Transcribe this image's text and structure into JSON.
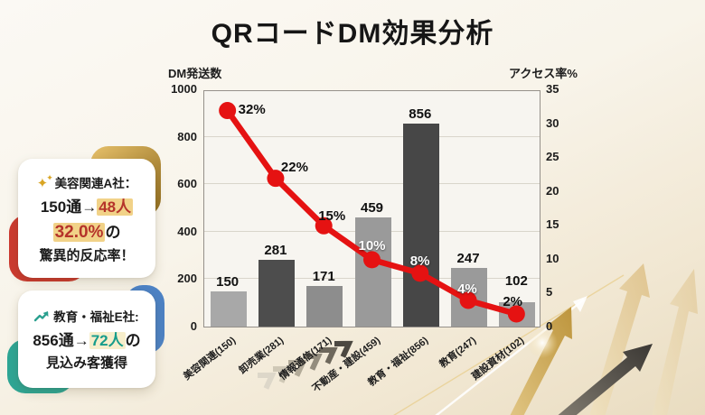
{
  "title": "QRコードDM効果分析",
  "chart_data": {
    "type": "bar",
    "subtype": "dual-axis bar + line",
    "categories": [
      "美容関連(150)",
      "卸売業(281)",
      "情報通信(171)",
      "不動産・建設(459)",
      "教育・福祉(856)",
      "教育(247)",
      "建設資材(102)"
    ],
    "series": [
      {
        "name": "DM発送数",
        "type": "bar",
        "axis": "left",
        "values": [
          150,
          281,
          171,
          459,
          856,
          247,
          102
        ],
        "labels": [
          "150",
          "281",
          "171",
          "459",
          "856",
          "247",
          "102"
        ],
        "colors": [
          "#a8a8a8",
          "#4d4d4d",
          "#8d8d8d",
          "#9a9a9a",
          "#474747",
          "#9a9a9a",
          "#a2a2a2"
        ]
      },
      {
        "name": "アクセス率",
        "type": "line",
        "axis": "right",
        "values": [
          32,
          22,
          15,
          10,
          8,
          4,
          2
        ],
        "labels": [
          "32%",
          "22%",
          "15%",
          "10%",
          "8%",
          "4%",
          "2%"
        ],
        "label_styles": [
          "dark",
          "dark",
          "dark",
          "light",
          "light",
          "light",
          "dark"
        ],
        "color": "#e51212"
      }
    ],
    "left_axis": {
      "title": "DM発送数",
      "max": 1000,
      "ticks": [
        "1000",
        "800",
        "600",
        "400",
        "200",
        "0"
      ]
    },
    "right_axis": {
      "title": "アクセス率%",
      "max": 35,
      "ticks": [
        "35",
        "30",
        "25",
        "20",
        "15",
        "10",
        "5",
        "0"
      ]
    },
    "grid": true,
    "legend": "none"
  },
  "callouts": [
    {
      "icon": "sparkles",
      "line1": "美容関連A社：",
      "line2_pre": "150通→",
      "line2_hl": "48人",
      "line3_hl": "32.0%",
      "line3_post": "の",
      "line4": "驚異的反応率！",
      "accent_top": "#c29a3e",
      "accent_bottom": "#cc3a30"
    },
    {
      "icon": "trend-up",
      "line1": "教育・福祉E社:",
      "line2_pre": "856通→",
      "line2_hl": "72人",
      "line2_post": "の",
      "line3": "見込み客獲得",
      "accent_top": "#4d82c4",
      "accent_bottom": "#2ea695"
    }
  ],
  "colors": {
    "line_red": "#e51212",
    "highlight_gold": "#f1d288",
    "highlight_pale": "#f7eecb",
    "teal": "#179c8b",
    "red_text": "#b5332a"
  }
}
